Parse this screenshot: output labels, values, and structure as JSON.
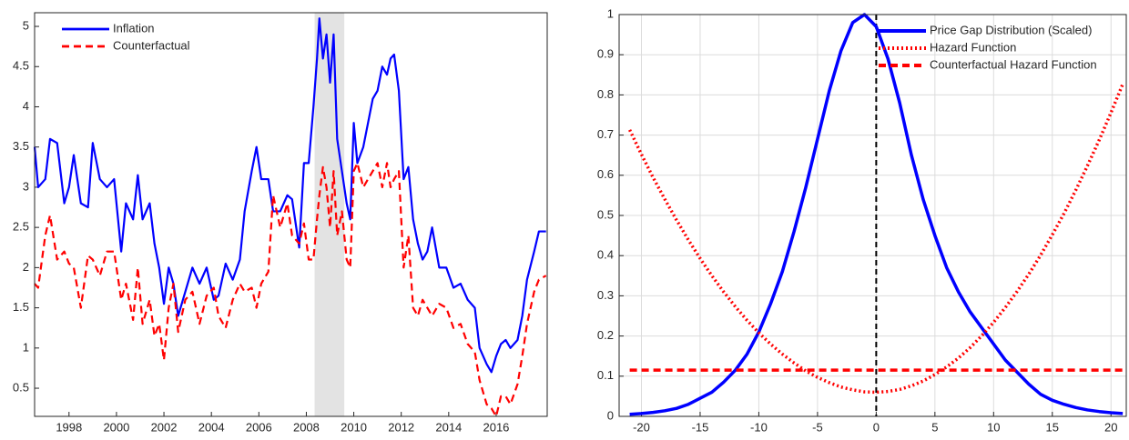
{
  "chart_data": [
    {
      "type": "line",
      "x": [
        1996.55,
        1996.7,
        1997.0,
        1997.2,
        1997.5,
        1997.8,
        1998.0,
        1998.2,
        1998.5,
        1998.8,
        1999.0,
        1999.3,
        1999.6,
        1999.9,
        2000.2,
        2000.4,
        2000.7,
        2000.9,
        2001.1,
        2001.4,
        2001.6,
        2001.8,
        2002.0,
        2002.2,
        2002.4,
        2002.6,
        2002.9,
        2003.2,
        2003.5,
        2003.8,
        2004.1,
        2004.3,
        2004.6,
        2004.9,
        2005.2,
        2005.4,
        2005.7,
        2005.9,
        2006.1,
        2006.4,
        2006.6,
        2006.9,
        2007.2,
        2007.4,
        2007.7,
        2007.9,
        2008.1,
        2008.3,
        2008.45,
        2008.55,
        2008.7,
        2008.85,
        2009.0,
        2009.15,
        2009.3,
        2009.5,
        2009.7,
        2009.85,
        2010.0,
        2010.15,
        2010.4,
        2010.6,
        2010.8,
        2011.0,
        2011.2,
        2011.4,
        2011.55,
        2011.7,
        2011.9,
        2012.1,
        2012.3,
        2012.5,
        2012.7,
        2012.9,
        2013.1,
        2013.3,
        2013.6,
        2013.9,
        2014.2,
        2014.5,
        2014.8,
        2015.1,
        2015.3,
        2015.6,
        2015.8,
        2016.0,
        2016.2,
        2016.4,
        2016.6,
        2016.9,
        2017.1,
        2017.3,
        2017.6,
        2017.8,
        2018.1
      ],
      "series": [
        {
          "name": "Inflation",
          "color": "#0000ff",
          "style": "solid",
          "values": [
            3.5,
            3.0,
            3.1,
            3.6,
            3.55,
            2.8,
            3.0,
            3.4,
            2.8,
            2.75,
            3.55,
            3.1,
            3.0,
            3.1,
            2.2,
            2.8,
            2.6,
            3.15,
            2.6,
            2.8,
            2.3,
            2.0,
            1.55,
            2.0,
            1.8,
            1.4,
            1.7,
            2.0,
            1.8,
            2.0,
            1.6,
            1.65,
            2.05,
            1.85,
            2.1,
            2.7,
            3.2,
            3.5,
            3.1,
            3.1,
            2.7,
            2.7,
            2.9,
            2.85,
            2.25,
            3.3,
            3.3,
            4.0,
            4.6,
            5.1,
            4.6,
            4.9,
            4.3,
            4.9,
            3.6,
            3.2,
            2.8,
            2.6,
            3.8,
            3.3,
            3.5,
            3.8,
            4.1,
            4.2,
            4.5,
            4.4,
            4.6,
            4.65,
            4.2,
            3.1,
            3.25,
            2.6,
            2.3,
            2.1,
            2.2,
            2.5,
            2.0,
            2.0,
            1.75,
            1.8,
            1.6,
            1.5,
            1.0,
            0.8,
            0.7,
            0.9,
            1.05,
            1.1,
            1.0,
            1.1,
            1.4,
            1.85,
            2.2,
            2.45,
            2.45
          ]
        },
        {
          "name": "Counterfactual",
          "color": "#ff0000",
          "style": "dashed",
          "values": [
            1.8,
            1.75,
            2.4,
            2.65,
            2.1,
            2.2,
            2.05,
            2.0,
            1.5,
            2.15,
            2.1,
            1.9,
            2.2,
            2.2,
            1.6,
            1.8,
            1.35,
            2.0,
            1.3,
            1.6,
            1.15,
            1.3,
            0.85,
            1.5,
            1.8,
            1.2,
            1.6,
            1.7,
            1.3,
            1.65,
            1.75,
            1.4,
            1.25,
            1.6,
            1.8,
            1.7,
            1.75,
            1.5,
            1.8,
            1.95,
            2.9,
            2.5,
            2.8,
            2.4,
            2.3,
            2.55,
            2.1,
            2.1,
            2.6,
            2.9,
            3.25,
            3.0,
            2.5,
            3.2,
            2.4,
            2.7,
            2.1,
            2.0,
            3.2,
            3.3,
            3.0,
            3.1,
            3.2,
            3.3,
            3.0,
            3.3,
            3.0,
            3.1,
            3.2,
            2.0,
            2.4,
            1.5,
            1.4,
            1.6,
            1.5,
            1.4,
            1.55,
            1.5,
            1.25,
            1.3,
            1.05,
            0.95,
            0.6,
            0.3,
            0.25,
            0.15,
            0.4,
            0.4,
            0.3,
            0.55,
            0.9,
            1.3,
            1.7,
            1.85,
            1.9
          ]
        }
      ],
      "shade": [
        2008.35,
        2009.6
      ],
      "xlim": [
        1996.55,
        2018.15
      ],
      "xticks": [
        1998,
        2000,
        2002,
        2004,
        2006,
        2008,
        2010,
        2012,
        2014,
        2016
      ],
      "ylim": [
        0.15,
        5.17
      ],
      "yticks": [
        0.5,
        1,
        1.5,
        2,
        2.5,
        3,
        3.5,
        4,
        4.5,
        5
      ],
      "grid": false,
      "legend": "upper left"
    },
    {
      "type": "line",
      "x": [
        -21,
        -20,
        -19,
        -18,
        -17,
        -16,
        -15,
        -14,
        -13,
        -12,
        -11,
        -10,
        -9,
        -8,
        -7,
        -6,
        -5,
        -4,
        -3,
        -2,
        -1,
        0,
        1,
        2,
        3,
        4,
        5,
        6,
        7,
        8,
        9,
        10,
        11,
        12,
        13,
        14,
        15,
        16,
        17,
        18,
        19,
        20,
        21
      ],
      "series": [
        {
          "name": "Price Gap Distribution (Scaled)",
          "color": "#0000ff",
          "style": "solid",
          "values": [
            0.005,
            0.007,
            0.01,
            0.014,
            0.02,
            0.03,
            0.045,
            0.06,
            0.085,
            0.115,
            0.155,
            0.21,
            0.28,
            0.36,
            0.46,
            0.57,
            0.69,
            0.81,
            0.91,
            0.98,
            1,
            0.97,
            0.89,
            0.78,
            0.65,
            0.54,
            0.45,
            0.37,
            0.31,
            0.26,
            0.22,
            0.18,
            0.14,
            0.11,
            0.08,
            0.055,
            0.04,
            0.03,
            0.022,
            0.016,
            0.012,
            0.009,
            0.007
          ]
        },
        {
          "name": "Hazard Function",
          "color": "#ff0000",
          "style": "dotted",
          "values": [
            0.713,
            0.652,
            0.594,
            0.54,
            0.488,
            0.439,
            0.393,
            0.35,
            0.31,
            0.273,
            0.239,
            0.208,
            0.18,
            0.155,
            0.133,
            0.113,
            0.097,
            0.084,
            0.073,
            0.066,
            0.061,
            0.06,
            0.062,
            0.067,
            0.076,
            0.088,
            0.104,
            0.123,
            0.145,
            0.171,
            0.201,
            0.234,
            0.271,
            0.311,
            0.354,
            0.401,
            0.452,
            0.505,
            0.563,
            0.624,
            0.688,
            0.756,
            0.827
          ]
        },
        {
          "name": "Counterfactual Hazard Function",
          "color": "#ff0000",
          "style": "dashed",
          "values": [
            0.115,
            0.115,
            0.115,
            0.115,
            0.115,
            0.115,
            0.115,
            0.115,
            0.115,
            0.115,
            0.115,
            0.115,
            0.115,
            0.115,
            0.115,
            0.115,
            0.115,
            0.115,
            0.115,
            0.115,
            0.115,
            0.115,
            0.115,
            0.115,
            0.115,
            0.115,
            0.115,
            0.115,
            0.115,
            0.115,
            0.115,
            0.115,
            0.115,
            0.115,
            0.115,
            0.115,
            0.115,
            0.115,
            0.115,
            0.115,
            0.115,
            0.115,
            0.115
          ]
        }
      ],
      "vline": 0,
      "xlim": [
        -21.9,
        21.3
      ],
      "xticks": [
        -20,
        -15,
        -10,
        -5,
        0,
        5,
        10,
        15,
        20
      ],
      "ylim": [
        0,
        1
      ],
      "yticks": [
        0,
        0.1,
        0.2,
        0.3,
        0.4,
        0.5,
        0.6,
        0.7,
        0.8,
        0.9,
        1
      ],
      "grid": true,
      "legend": "upper right"
    }
  ]
}
